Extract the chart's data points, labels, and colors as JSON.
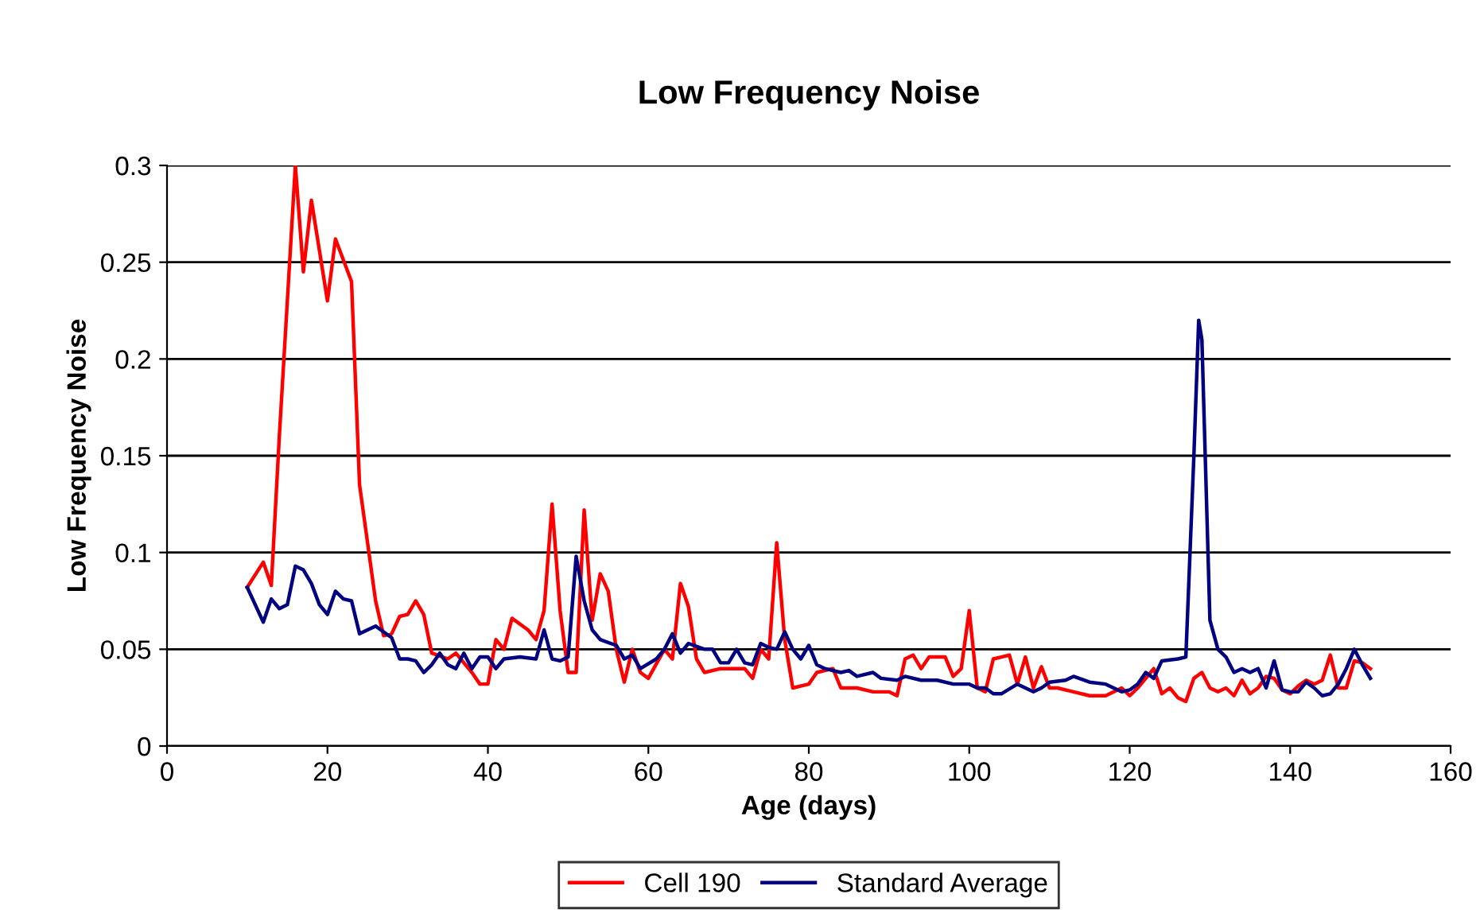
{
  "chart_data": {
    "type": "line",
    "title": "Low Frequency Noise",
    "xlabel": "Age (days)",
    "ylabel": "Low Frequency Noise",
    "xlim": [
      0,
      160
    ],
    "xticks": [
      0,
      20,
      40,
      60,
      80,
      100,
      120,
      140,
      160
    ],
    "ylim": [
      0,
      0.3
    ],
    "yticks": [
      0,
      0.05,
      0.1,
      0.15,
      0.2,
      0.25,
      0.3
    ],
    "grid": "y",
    "legend": "bottom",
    "marker": "none",
    "line_style": "solid",
    "series": [
      {
        "name": "Cell 190",
        "color": "#ff0000",
        "x": [
          10,
          12,
          13,
          14,
          16,
          17,
          18,
          20,
          21,
          23,
          24,
          26,
          27,
          28,
          29,
          30,
          31,
          32,
          33,
          35,
          36,
          38,
          39,
          40,
          41,
          42,
          43,
          45,
          46,
          47,
          48,
          49,
          50,
          51,
          52,
          53,
          54,
          55,
          56,
          57,
          58,
          59,
          60,
          62,
          63,
          64,
          65,
          66,
          67,
          69,
          71,
          72,
          73,
          74,
          75,
          76,
          77,
          78,
          80,
          81,
          83,
          84,
          86,
          88,
          90,
          91,
          92,
          93,
          94,
          95,
          97,
          98,
          99,
          100,
          101,
          102,
          103,
          104,
          105,
          106,
          107,
          108,
          109,
          110,
          111,
          113,
          115,
          117,
          119,
          120,
          121,
          123,
          124,
          125,
          126,
          127,
          128,
          129,
          130,
          131,
          132,
          133,
          134,
          135,
          136,
          137,
          138,
          139,
          140,
          141,
          142,
          143,
          144,
          145,
          146,
          147,
          148,
          149,
          150
        ],
        "values": [
          0.082,
          0.095,
          0.083,
          0.16,
          0.3,
          0.245,
          0.282,
          0.23,
          0.262,
          0.24,
          0.135,
          0.075,
          0.057,
          0.058,
          0.067,
          0.068,
          0.075,
          0.068,
          0.048,
          0.045,
          0.048,
          0.038,
          0.032,
          0.032,
          0.055,
          0.05,
          0.066,
          0.06,
          0.055,
          0.07,
          0.125,
          0.07,
          0.038,
          0.038,
          0.122,
          0.065,
          0.089,
          0.08,
          0.05,
          0.033,
          0.05,
          0.038,
          0.035,
          0.05,
          0.045,
          0.084,
          0.072,
          0.045,
          0.038,
          0.04,
          0.04,
          0.04,
          0.035,
          0.05,
          0.045,
          0.105,
          0.055,
          0.03,
          0.032,
          0.038,
          0.04,
          0.03,
          0.03,
          0.028,
          0.028,
          0.026,
          0.045,
          0.047,
          0.04,
          0.046,
          0.046,
          0.036,
          0.04,
          0.07,
          0.03,
          0.028,
          0.045,
          0.046,
          0.047,
          0.032,
          0.046,
          0.03,
          0.041,
          0.03,
          0.03,
          0.028,
          0.026,
          0.026,
          0.03,
          0.026,
          0.03,
          0.04,
          0.027,
          0.03,
          0.025,
          0.023,
          0.035,
          0.038,
          0.03,
          0.028,
          0.03,
          0.026,
          0.034,
          0.027,
          0.03,
          0.036,
          0.035,
          0.029,
          0.027,
          0.031,
          0.034,
          0.032,
          0.034,
          0.047,
          0.03,
          0.03,
          0.044,
          0.043,
          0.04
        ]
      },
      {
        "name": "Standard Average",
        "color": "#000080",
        "x": [
          10,
          12,
          13,
          14,
          15,
          16,
          17,
          18,
          19,
          20,
          21,
          22,
          23,
          24,
          25,
          26,
          27,
          28,
          29,
          30,
          31,
          32,
          33,
          34,
          35,
          36,
          37,
          38,
          39,
          40,
          41,
          42,
          44,
          46,
          47,
          48,
          49,
          50,
          51,
          52,
          53,
          54,
          56,
          57,
          58,
          59,
          61,
          62,
          63,
          64,
          65,
          67,
          68,
          69,
          70,
          71,
          72,
          73,
          74,
          75,
          76,
          77,
          78,
          79,
          80,
          81,
          82,
          84,
          85,
          86,
          88,
          89,
          91,
          92,
          94,
          96,
          98,
          100,
          101,
          102,
          103,
          104,
          106,
          107,
          108,
          109,
          110,
          112,
          113,
          115,
          117,
          119,
          120,
          121,
          122,
          123,
          124,
          126,
          127,
          128,
          128.6,
          129,
          130,
          131,
          132,
          133,
          134,
          135,
          136,
          137,
          138,
          139,
          140,
          141,
          142,
          143,
          144,
          145,
          146,
          147,
          148,
          149,
          150
        ],
        "values": [
          0.082,
          0.064,
          0.076,
          0.071,
          0.073,
          0.093,
          0.091,
          0.084,
          0.073,
          0.068,
          0.08,
          0.076,
          0.075,
          0.058,
          0.06,
          0.062,
          0.059,
          0.056,
          0.045,
          0.045,
          0.044,
          0.038,
          0.042,
          0.048,
          0.042,
          0.04,
          0.048,
          0.04,
          0.046,
          0.046,
          0.04,
          0.045,
          0.046,
          0.045,
          0.06,
          0.045,
          0.044,
          0.046,
          0.098,
          0.075,
          0.06,
          0.055,
          0.052,
          0.045,
          0.047,
          0.04,
          0.045,
          0.05,
          0.058,
          0.048,
          0.053,
          0.05,
          0.05,
          0.043,
          0.043,
          0.05,
          0.043,
          0.042,
          0.053,
          0.051,
          0.05,
          0.059,
          0.05,
          0.045,
          0.052,
          0.042,
          0.04,
          0.038,
          0.039,
          0.036,
          0.038,
          0.035,
          0.034,
          0.036,
          0.034,
          0.034,
          0.032,
          0.032,
          0.03,
          0.03,
          0.027,
          0.027,
          0.032,
          0.03,
          0.028,
          0.03,
          0.033,
          0.034,
          0.036,
          0.033,
          0.032,
          0.028,
          0.029,
          0.032,
          0.038,
          0.035,
          0.044,
          0.045,
          0.046,
          0.15,
          0.22,
          0.21,
          0.065,
          0.05,
          0.046,
          0.038,
          0.04,
          0.038,
          0.04,
          0.03,
          0.044,
          0.029,
          0.028,
          0.028,
          0.033,
          0.03,
          0.026,
          0.027,
          0.032,
          0.04,
          0.05,
          0.042,
          0.035
        ]
      }
    ]
  }
}
